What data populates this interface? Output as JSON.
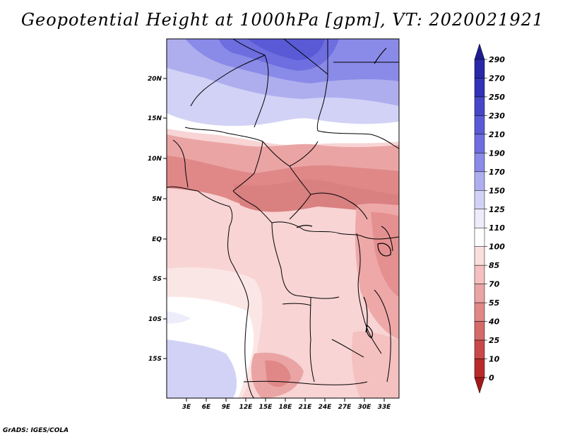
{
  "title": "Geopotential Height at 1000hPa [gpm], VT: 2020021921",
  "credit": "GrADS: IGES/COLA",
  "map": {
    "lat_labels": [
      "20N",
      "15N",
      "10N",
      "5N",
      "EQ",
      "5S",
      "10S",
      "15S"
    ],
    "lon_labels": [
      "3E",
      "6E",
      "9E",
      "12E",
      "15E",
      "18E",
      "21E",
      "24E",
      "27E",
      "30E",
      "33E"
    ]
  },
  "colorbar": {
    "levels": [
      "290",
      "270",
      "250",
      "230",
      "210",
      "190",
      "170",
      "150",
      "125",
      "110",
      "100",
      "85",
      "70",
      "55",
      "40",
      "25",
      "10",
      "0"
    ],
    "colors": [
      "#1c1c8f",
      "#2828a8",
      "#3232b8",
      "#4646c8",
      "#5a5ad6",
      "#6e6ee0",
      "#8a8ae8",
      "#aeaeef",
      "#d2d2f6",
      "#ececfb",
      "#ffffff",
      "#fbdede",
      "#f4c0c0",
      "#eba4a4",
      "#e08888",
      "#d46a6a",
      "#c94848",
      "#bb2a2a",
      "#a21818"
    ]
  }
}
